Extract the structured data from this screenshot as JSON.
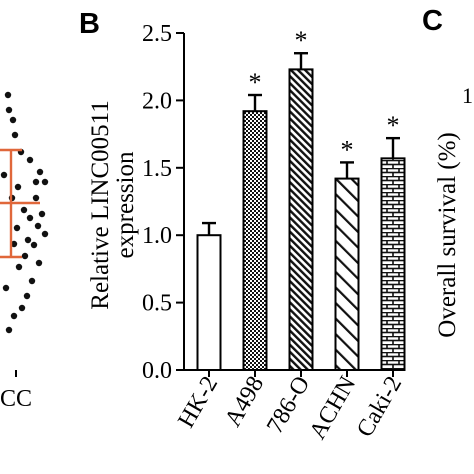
{
  "panel_labels": {
    "left": "B",
    "right": "C"
  },
  "left_panel": {
    "x_label_fragment": "CC",
    "line_color": "#e0673a",
    "dot_count_note": ""
  },
  "right_panel": {
    "ylabel": "Overall survival (%)",
    "tick_fragment": "1"
  },
  "chart_data": {
    "type": "bar",
    "title": "",
    "xlabel": "",
    "ylabel_line1": "Relative LINC00511",
    "ylabel_line2": "expression",
    "categories": [
      "HK-2",
      "A498",
      "786-O",
      "ACHN",
      "Caki-2"
    ],
    "values": [
      1.0,
      1.92,
      2.23,
      1.42,
      1.57
    ],
    "errors": [
      0.09,
      0.12,
      0.12,
      0.12,
      0.15
    ],
    "significance": [
      "",
      "*",
      "*",
      "*",
      "*"
    ],
    "patterns": [
      "none",
      "checker",
      "diagonal-fine",
      "diagonal-wide",
      "brick"
    ],
    "ylim": [
      0.0,
      2.5
    ],
    "yticks": [
      "0.0",
      "0.5",
      "1.0",
      "1.5",
      "2.0",
      "2.5"
    ],
    "grid": false,
    "legend": "none"
  }
}
